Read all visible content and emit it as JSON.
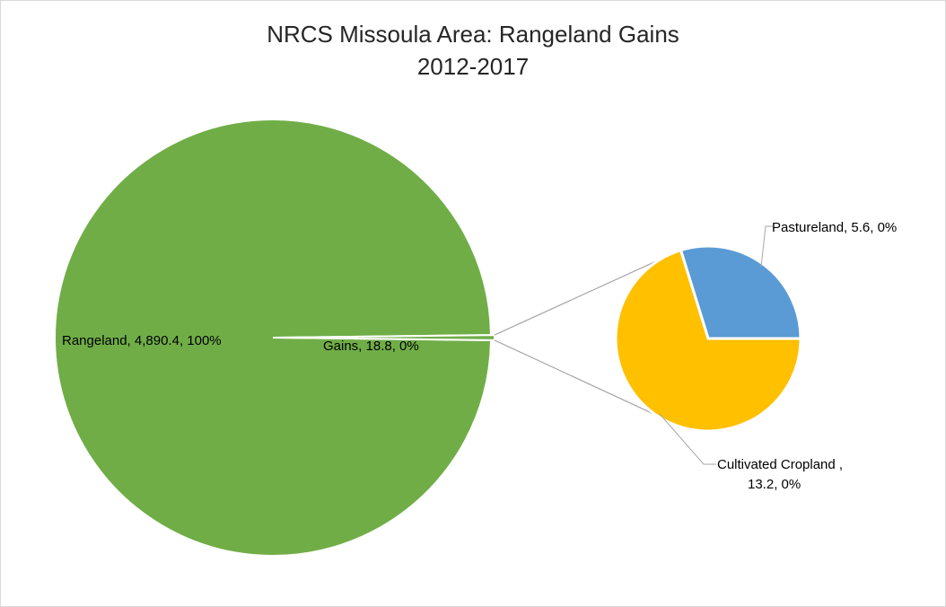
{
  "chart_data": {
    "type": "pie-of-pie",
    "title": "NRCS Missoula Area: Rangeland Gains",
    "subtitle": "2012-2017",
    "primary": {
      "slices": [
        {
          "name": "Rangeland",
          "value": 4890.4,
          "percent": "100%",
          "label": "Rangeland, 4,890.4, 100%",
          "color": "#70ad47"
        },
        {
          "name": "Gains",
          "value": 18.8,
          "percent": "0%",
          "label": "Gains, 18.8, 0%",
          "color": "#70ad47"
        }
      ]
    },
    "secondary": {
      "slices": [
        {
          "name": "Pastureland",
          "value": 5.6,
          "percent": "0%",
          "label": "Pastureland, 5.6, 0%",
          "color": "#5b9bd5"
        },
        {
          "name": "Cultivated Cropland",
          "value": 13.2,
          "percent": "0%",
          "label_line1": "Cultivated Cropland ,",
          "label_line2": "13.2, 0%",
          "color": "#ffc000"
        }
      ]
    },
    "connector_color": "#a6a6a6",
    "legend": "none"
  }
}
